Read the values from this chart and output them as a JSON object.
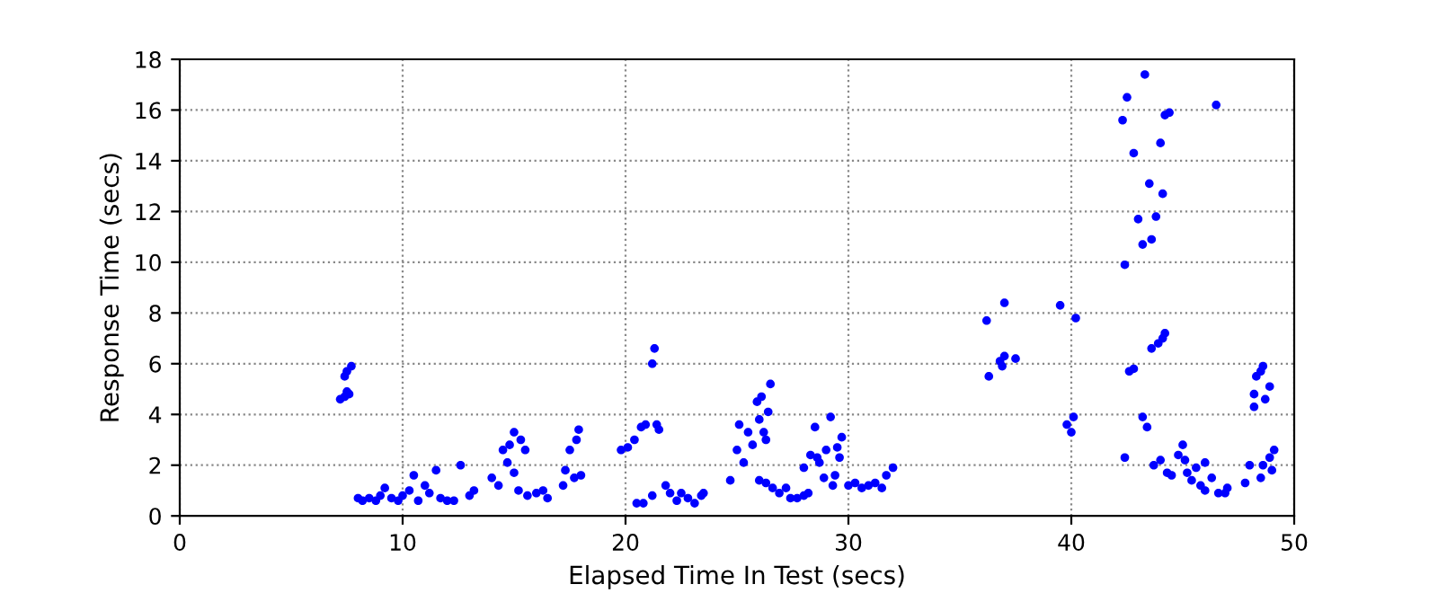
{
  "chart_data": {
    "type": "scatter",
    "xlabel": "Elapsed Time In Test (secs)",
    "ylabel": "Response Time (secs)",
    "xlim": [
      0,
      50
    ],
    "xticks": [
      0,
      10,
      20,
      30,
      40,
      50
    ],
    "ylim": [
      0,
      18
    ],
    "yticks": [
      0,
      2,
      4,
      6,
      8,
      10,
      12,
      14,
      16,
      18
    ],
    "grid": true,
    "marker": "circle",
    "series": [
      {
        "color": "#0000ff",
        "x": [
          7.2,
          7.4,
          7.5,
          7.4,
          7.5,
          7.7,
          7.6,
          8,
          8.2,
          8.5,
          8.8,
          9,
          9.2,
          9.5,
          9.8,
          10,
          10.3,
          10.5,
          10.7,
          11,
          11.2,
          11.5,
          11.7,
          12,
          12.3,
          12.6,
          13,
          13.2,
          14,
          14.3,
          14.5,
          14.7,
          14.8,
          15,
          15.2,
          15.3,
          15.5,
          15.6,
          16,
          16.3,
          16.5,
          15.0,
          17.2,
          17.3,
          17.5,
          17.7,
          17.9,
          18,
          17.8,
          19.8,
          20.1,
          20.4,
          20.7,
          20.9,
          21.2,
          21.3,
          21.4,
          21.5,
          20.5,
          20.8,
          21.2,
          21.8,
          22,
          22.3,
          22.5,
          22.8,
          23.1,
          23.4,
          23.5,
          24.7,
          25,
          25.1,
          25.3,
          25.5,
          25.7,
          25.9,
          26,
          26.1,
          26.2,
          26.3,
          26.4,
          26.5,
          26,
          26.3,
          26.6,
          26.9,
          27.2,
          27.4,
          27.7,
          28,
          28,
          28.3,
          28.5,
          28.6,
          28.7,
          29,
          29.2,
          29.3,
          29.5,
          29.6,
          29.7,
          28.9,
          29.4,
          30,
          30.3,
          30.6,
          30.9,
          31.2,
          31.5,
          31.7,
          32,
          28.2,
          36.2,
          36.3,
          36.8,
          36.9,
          37,
          37,
          37.5,
          39.5,
          39.8,
          40,
          40.1,
          40.2,
          42.3,
          42.5,
          42.8,
          43,
          43.2,
          43.3,
          43.5,
          43.6,
          43.8,
          44,
          44.1,
          44.2,
          44.4,
          42.4,
          42.6,
          42.8,
          43.2,
          43.4,
          43.6,
          43.9,
          44.1,
          44.2,
          42.4,
          43.7,
          44,
          44.3,
          44.5,
          44.8,
          45,
          45.2,
          45.4,
          45.6,
          45.8,
          46,
          46.3,
          46.5,
          46.6,
          46.9,
          47,
          46,
          45.1,
          47.8,
          48,
          48.2,
          48.3,
          48.5,
          48.6,
          48.7,
          48.9,
          48.9,
          49.1,
          48.2,
          48.5,
          49,
          48.6
        ],
        "values": [
          4.6,
          4.7,
          4.9,
          5.5,
          5.7,
          5.9,
          4.8,
          0.7,
          0.6,
          0.7,
          0.6,
          0.8,
          1.1,
          0.7,
          0.6,
          0.8,
          1.0,
          1.6,
          0.6,
          1.2,
          0.9,
          1.8,
          0.7,
          0.6,
          0.6,
          2.0,
          0.8,
          1.0,
          1.5,
          1.2,
          2.6,
          2.1,
          2.8,
          3.3,
          1.0,
          3.0,
          2.6,
          0.8,
          0.9,
          1.0,
          0.7,
          1.7,
          1.2,
          1.8,
          2.6,
          1.5,
          3.4,
          1.6,
          3.0,
          2.6,
          2.7,
          3.0,
          3.5,
          3.6,
          6.0,
          6.6,
          3.6,
          3.4,
          0.5,
          0.5,
          0.8,
          1.2,
          0.9,
          0.6,
          0.9,
          0.7,
          0.5,
          0.8,
          0.9,
          1.4,
          2.6,
          3.6,
          2.1,
          3.3,
          2.8,
          4.5,
          3.8,
          4.7,
          3.3,
          3.0,
          4.1,
          5.2,
          1.4,
          1.3,
          1.1,
          0.9,
          1.1,
          0.7,
          0.7,
          0.8,
          1.9,
          2.4,
          3.5,
          2.3,
          2.1,
          2.6,
          3.9,
          1.2,
          2.7,
          2.3,
          3.1,
          1.5,
          1.6,
          1.2,
          1.3,
          1.1,
          1.2,
          1.3,
          1.1,
          1.6,
          1.9,
          0.9,
          7.7,
          5.5,
          6.1,
          5.9,
          6.3,
          8.4,
          6.2,
          8.3,
          3.6,
          3.3,
          3.9,
          7.8,
          15.6,
          16.5,
          14.3,
          11.7,
          10.7,
          17.4,
          13.1,
          10.9,
          11.8,
          14.7,
          12.7,
          15.8,
          15.9,
          9.9,
          5.7,
          5.8,
          3.9,
          3.5,
          6.6,
          6.8,
          7.0,
          7.2,
          2.3,
          2.0,
          2.2,
          1.7,
          1.6,
          2.4,
          2.8,
          1.7,
          1.4,
          1.9,
          1.2,
          2.1,
          1.5,
          16.2,
          0.9,
          0.9,
          1.1,
          1.0,
          2.2,
          1.3,
          2.0,
          4.8,
          5.5,
          5.7,
          5.9,
          4.6,
          5.1,
          2.3,
          2.6,
          4.3,
          1.5,
          1.8,
          2.0
        ]
      }
    ]
  }
}
